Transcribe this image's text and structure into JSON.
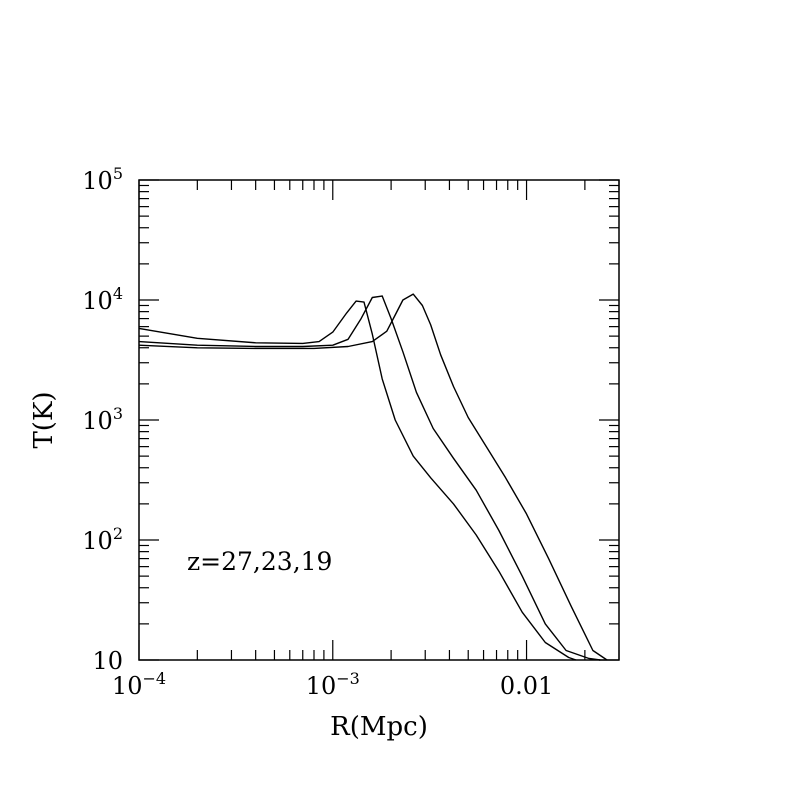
{
  "chart_data": {
    "type": "line",
    "xlabel": "R(Mpc)",
    "ylabel": "T(K)",
    "xscale": "log",
    "yscale": "log",
    "xlim": [
      0.0001,
      0.03
    ],
    "ylim": [
      10,
      100000
    ],
    "x_ticks": [
      {
        "value": 0.0001,
        "base": "10",
        "exp": "−4"
      },
      {
        "value": 0.001,
        "base": "10",
        "exp": "−3"
      },
      {
        "value": 0.01,
        "base": "0.01",
        "exp": ""
      }
    ],
    "y_ticks": [
      {
        "value": 10,
        "base": "10",
        "exp": ""
      },
      {
        "value": 100,
        "base": "10",
        "exp": "2"
      },
      {
        "value": 1000,
        "base": "10",
        "exp": "3"
      },
      {
        "value": 10000,
        "base": "10",
        "exp": "4"
      },
      {
        "value": 100000,
        "base": "10",
        "exp": "5"
      }
    ],
    "annotation": "z=27,23,19",
    "series": [
      {
        "x": [
          0.0001,
          0.0002,
          0.0004,
          0.0007,
          0.00085,
          0.001,
          0.00118,
          0.00132,
          0.00145,
          0.0016,
          0.0018,
          0.0021,
          0.0026,
          0.0032,
          0.0042,
          0.0055,
          0.0072,
          0.0095,
          0.0125,
          0.0165,
          0.018
        ],
        "y": [
          5800,
          4800,
          4400,
          4350,
          4500,
          5400,
          7800,
          9800,
          9600,
          5200,
          2200,
          1000,
          500,
          330,
          200,
          110,
          55,
          25,
          14,
          10.5,
          10
        ]
      },
      {
        "x": [
          0.0001,
          0.0002,
          0.0004,
          0.0007,
          0.001,
          0.0012,
          0.0014,
          0.0016,
          0.0018,
          0.002,
          0.0023,
          0.0027,
          0.0033,
          0.0042,
          0.0055,
          0.0072,
          0.0095,
          0.0125,
          0.016,
          0.021,
          0.024
        ],
        "y": [
          4500,
          4200,
          4100,
          4100,
          4200,
          4700,
          7000,
          10500,
          10800,
          7000,
          3700,
          1700,
          850,
          480,
          260,
          120,
          50,
          20,
          12,
          10.3,
          10
        ]
      },
      {
        "x": [
          0.0001,
          0.0002,
          0.0004,
          0.0008,
          0.0012,
          0.0016,
          0.0019,
          0.0021,
          0.0023,
          0.0026,
          0.0029,
          0.0032,
          0.0036,
          0.0042,
          0.005,
          0.0062,
          0.0078,
          0.01,
          0.013,
          0.017,
          0.022,
          0.026
        ],
        "y": [
          4200,
          4000,
          3950,
          3950,
          4100,
          4500,
          5500,
          7500,
          10000,
          11200,
          9000,
          6200,
          3500,
          1900,
          1050,
          600,
          330,
          165,
          70,
          28,
          12,
          10
        ]
      }
    ]
  }
}
